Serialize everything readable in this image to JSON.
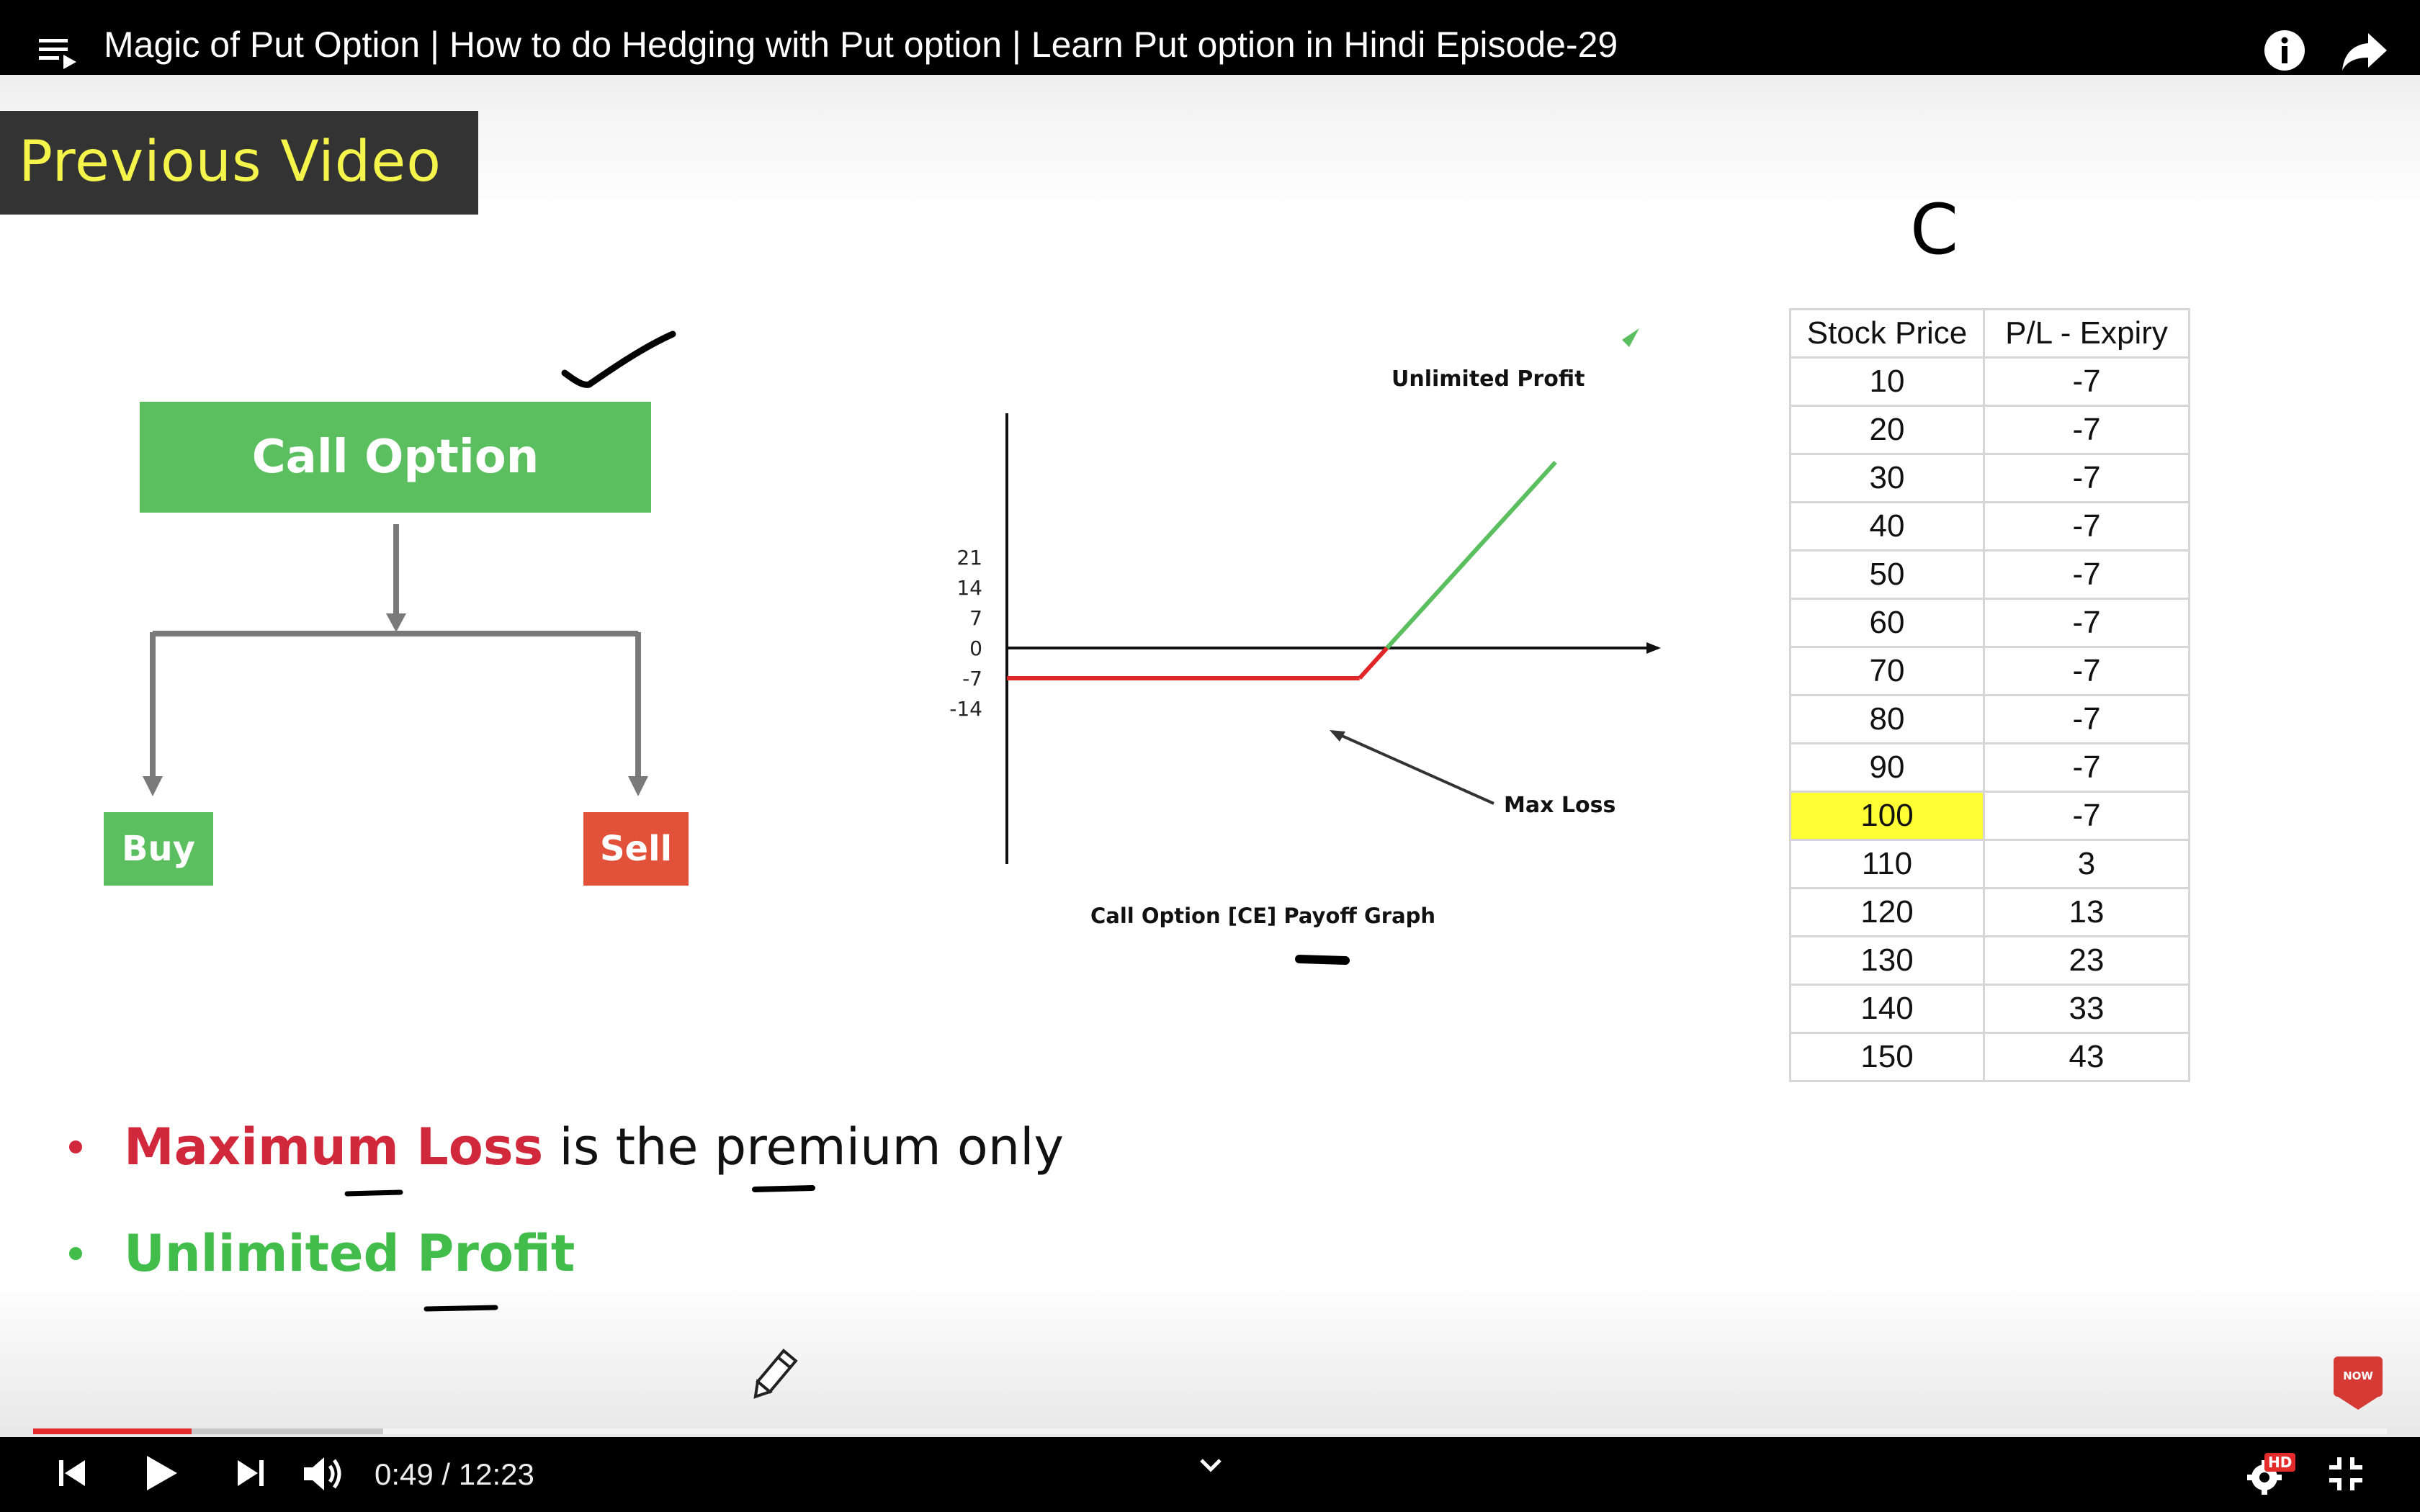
{
  "player": {
    "title": "Magic of Put Option | How to do Hedging with Put option | Learn Put option in Hindi Episode-29",
    "time": "0:49 / 12:23",
    "progress_fraction": 0.066,
    "buffer_fraction": 0.149,
    "hd_badge": "HD",
    "subscribe_badge": "SUBSCRIBE NOW",
    "accent_color": "#e32b2b",
    "icons": [
      "playlist-icon",
      "info-icon",
      "share-icon",
      "previous-icon",
      "play-icon",
      "next-icon",
      "volume-icon",
      "chevron-down-icon",
      "settings-icon",
      "exit-fullscreen-icon"
    ]
  },
  "slide": {
    "banner": "Previous Video",
    "handwritten_letter": "C",
    "flow": {
      "root": "Call Option",
      "left": "Buy",
      "right": "Sell"
    },
    "bullets": [
      {
        "strong": "Maximum Loss",
        "rest": " is the premium only",
        "color": "#d2283c"
      },
      {
        "strong": "Unlimited Profit",
        "rest": "",
        "color": "#42bd4c"
      }
    ],
    "colors": {
      "green": "#5bbf5f",
      "red": "#e2513a",
      "highlight": "#ffff33"
    }
  },
  "chart_data": {
    "type": "line",
    "title": "Call Option [CE] Payoff Graph",
    "yticks": [
      "21",
      "14",
      "7",
      "0",
      "-7",
      "-14"
    ],
    "ylim": [
      -21,
      28
    ],
    "series": [
      {
        "name": "",
        "x": [
          10,
          100,
          110,
          150
        ],
        "values": [
          -7,
          -7,
          3,
          43
        ]
      }
    ],
    "annotations": [
      "Unlimited Profit",
      "Max Loss"
    ],
    "grid": false
  },
  "table": {
    "headers": [
      "Stock Price",
      "P/L - Expiry"
    ],
    "rows": [
      [
        "10",
        "-7"
      ],
      [
        "20",
        "-7"
      ],
      [
        "30",
        "-7"
      ],
      [
        "40",
        "-7"
      ],
      [
        "50",
        "-7"
      ],
      [
        "60",
        "-7"
      ],
      [
        "70",
        "-7"
      ],
      [
        "80",
        "-7"
      ],
      [
        "90",
        "-7"
      ],
      [
        "100",
        "-7"
      ],
      [
        "110",
        "3"
      ],
      [
        "120",
        "13"
      ],
      [
        "130",
        "23"
      ],
      [
        "140",
        "33"
      ],
      [
        "150",
        "43"
      ]
    ],
    "highlight_price": "100"
  }
}
